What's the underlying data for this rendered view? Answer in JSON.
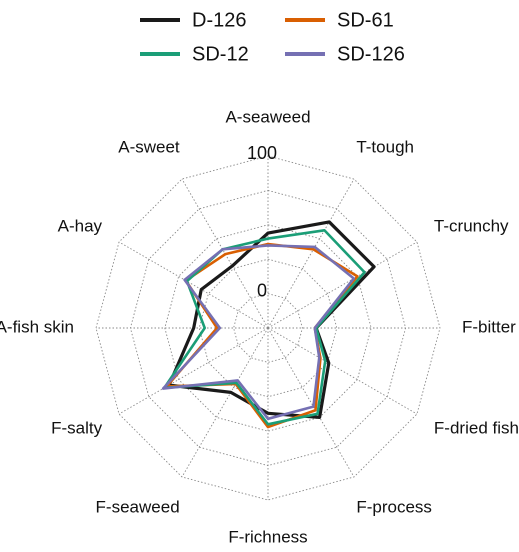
{
  "chart_data": {
    "type": "radar",
    "categories": [
      "A-seaweed",
      "T-tough",
      "T-crunchy",
      "F-bitter",
      "F-dried fish",
      "F-process",
      "F-richness",
      "F-seaweed",
      "F-salty",
      "A-fish skin",
      "A-hay",
      "A-sweet"
    ],
    "series": [
      {
        "name": "D-126",
        "color": "#1a1a1a",
        "values": [
          44,
          64,
          64,
          10,
          26,
          50,
          37,
          29,
          58,
          29,
          31,
          27
        ]
      },
      {
        "name": "SD-61",
        "color": "#d95f02",
        "values": [
          36,
          41,
          50,
          9,
          19,
          44,
          47,
          22,
          60,
          12,
          44,
          37
        ]
      },
      {
        "name": "SD-12",
        "color": "#1b9e77",
        "values": [
          40,
          57,
          56,
          10,
          23,
          47,
          45,
          21,
          62,
          21,
          43,
          41
        ]
      },
      {
        "name": "SD-126",
        "color": "#7570b3",
        "values": [
          35,
          43,
          47,
          9,
          18,
          41,
          41,
          19,
          63,
          10,
          45,
          41
        ]
      }
    ],
    "ylim": [
      -25,
      100
    ],
    "yticks": [
      0,
      100
    ],
    "yminorticks": [
      25,
      50,
      75
    ],
    "grid": true,
    "legend": "top"
  }
}
